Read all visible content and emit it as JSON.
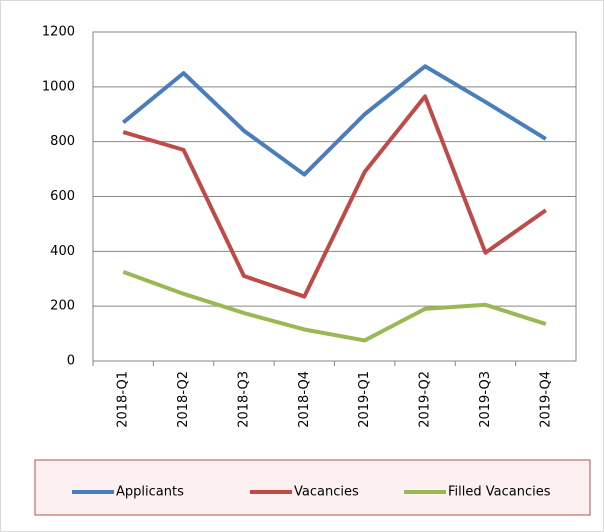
{
  "chart_data": {
    "type": "line",
    "categories": [
      "2018-Q1",
      "2018-Q2",
      "2018-Q3",
      "2018-Q4",
      "2019-Q1",
      "2019-Q2",
      "2019-Q3",
      "2019-Q4"
    ],
    "series": [
      {
        "name": "Applicants",
        "color": "#4a7ebb",
        "values": [
          870,
          1050,
          840,
          680,
          900,
          1075,
          945,
          810
        ]
      },
      {
        "name": "Vacancies",
        "color": "#be4b48",
        "values": [
          835,
          770,
          310,
          235,
          690,
          965,
          395,
          550
        ]
      },
      {
        "name": "Filled Vacancies",
        "color": "#98b954",
        "values": [
          325,
          245,
          175,
          115,
          75,
          190,
          205,
          135
        ]
      }
    ],
    "ylim": [
      0,
      1200
    ],
    "yticks": [
      0,
      200,
      400,
      600,
      800,
      1000,
      1200
    ],
    "grid": true,
    "legend": "bottom"
  }
}
